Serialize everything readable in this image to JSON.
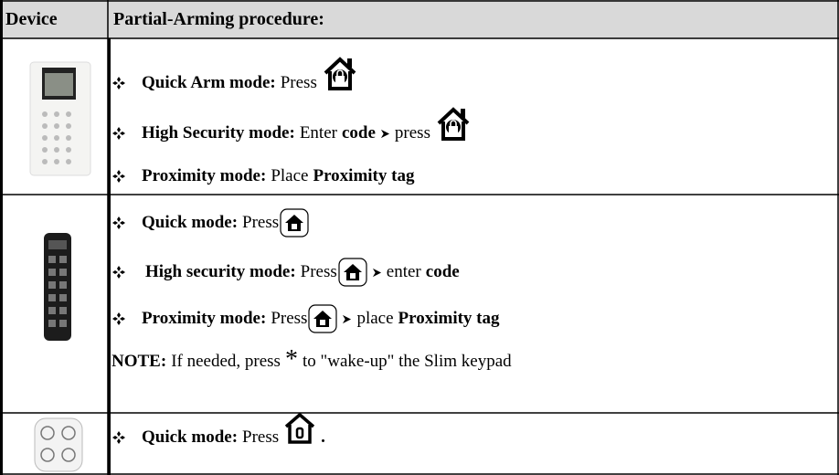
{
  "header": {
    "device": "Device",
    "procedure": "Partial-Arming procedure:"
  },
  "rows": [
    {
      "lines": [
        [
          "Quick Arm mode:",
          "Press"
        ],
        [
          "High Security mode:",
          "Enter",
          "code",
          "press"
        ],
        [
          "Proximity mode:",
          "Place",
          "Proximity tag"
        ]
      ]
    },
    {
      "lines": [
        [
          "Quick mode:",
          "Press"
        ],
        [
          "High security mode:",
          "Press",
          "enter",
          "code"
        ],
        [
          "Proximity mode:",
          "Press",
          "place",
          "Proximity tag"
        ]
      ],
      "note": [
        "NOTE:",
        "If needed, press",
        "*",
        "to \"wake-up\" the Slim keypad"
      ]
    },
    {
      "lines": [
        [
          "Quick mode:",
          "Press",
          "."
        ]
      ]
    }
  ]
}
